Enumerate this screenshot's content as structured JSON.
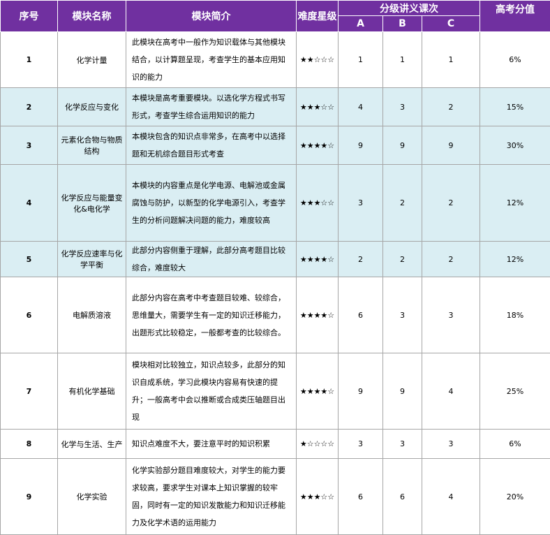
{
  "header": {
    "index": "序号",
    "name": "模块名称",
    "intro": "模块简介",
    "difficulty": "难度星级",
    "lessons": "分级讲义课次",
    "levels": [
      "A",
      "B",
      "C"
    ],
    "score": "高考分值"
  },
  "rows": [
    {
      "index": "1",
      "name": "化学计量",
      "intro": "此模块在高考中一般作为知识载体与其他模块结合，以计算题呈现，考查学生的基本应用知识的能力",
      "stars": "★★☆☆☆",
      "a": "1",
      "b": "1",
      "c": "1",
      "score": "6%"
    },
    {
      "index": "2",
      "name": "化学反应与变化",
      "intro": "本模块是高考重要模块。以选化学方程式书写形式，考查学生综合运用知识的能力",
      "stars": "★★★☆☆",
      "a": "4",
      "b": "3",
      "c": "2",
      "score": "15%"
    },
    {
      "index": "3",
      "name": "元素化合物与物质结构",
      "intro": "本模块包含的知识点非常多，在高考中以选择题和无机综合题目形式考查",
      "stars": "★★★★☆",
      "a": "9",
      "b": "9",
      "c": "9",
      "score": "30%"
    },
    {
      "index": "4",
      "name": "化学反应与能量变化&电化学",
      "intro": "本模块的内容重点是化学电源、电解池或金属腐蚀与防护，以新型的化学电源引入，考查学生的分析问题解决问题的能力，难度较高",
      "stars": "★★★☆☆",
      "a": "3",
      "b": "2",
      "c": "2",
      "score": "12%"
    },
    {
      "index": "5",
      "name": "化学反应速率与化学平衡",
      "intro": "此部分内容侧重于理解，此部分高考题目比较综合，难度较大",
      "stars": "★★★★☆",
      "a": "2",
      "b": "2",
      "c": "2",
      "score": "12%"
    },
    {
      "index": "6",
      "name": "电解质溶液",
      "intro": "此部分内容在高考中考查题目较难、较综合，思维量大，需要学生有一定的知识迁移能力，出题形式比较稳定，一般都考查的比较综合。",
      "stars": "★★★★☆",
      "a": "6",
      "b": "3",
      "c": "3",
      "score": "18%"
    },
    {
      "index": "7",
      "name": "有机化学基础",
      "intro": "模块相对比较独立，知识点较多，此部分的知识自成系统，学习此模块内容易有快速的提升；一般高考中会以推断或合成类压轴题目出现",
      "stars": "★★★★☆",
      "a": "9",
      "b": "9",
      "c": "4",
      "score": "25%"
    },
    {
      "index": "8",
      "name": "化学与生活、生产",
      "intro": "知识点难度不大，要注意平时的知识积累",
      "stars": "★☆☆☆☆",
      "a": "3",
      "b": "3",
      "c": "3",
      "score": "6%"
    },
    {
      "index": "9",
      "name": "化学实验",
      "intro": "化学实验部分题目难度较大，对学生的能力要求较高，要求学生对课本上知识掌握的较牢固，同时有一定的知识发散能力和知识迁移能力及化学术语的运用能力",
      "stars": "★★★☆☆",
      "a": "6",
      "b": "6",
      "c": "4",
      "score": "20%"
    }
  ]
}
